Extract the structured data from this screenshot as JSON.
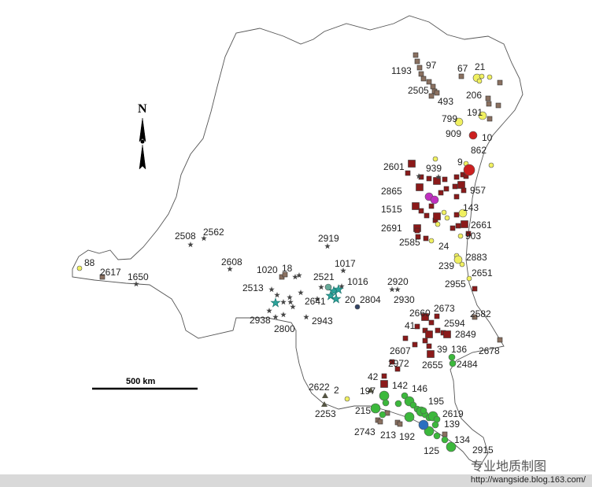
{
  "map": {
    "north_label": "N",
    "scale_label": "500 km",
    "labels": [
      "1193",
      "97",
      "67",
      "21",
      "2505",
      "493",
      "206",
      "799",
      "191",
      "909",
      "10",
      "862",
      "9",
      "2601",
      "939",
      "2865",
      "957",
      "1515",
      "143",
      "2691",
      "2661",
      "2585",
      "24",
      "903",
      "2883",
      "239",
      "2651",
      "2955",
      "2508",
      "2562",
      "2919",
      "2608",
      "1020",
      "18",
      "1017",
      "2521",
      "1016",
      "2513",
      "2641",
      "20",
      "2804",
      "2920",
      "2930",
      "2938",
      "2943",
      "2800",
      "88",
      "2617",
      "1650",
      "2660",
      "2673",
      "2582",
      "41",
      "2594",
      "2849",
      "2607",
      "39",
      "136",
      "2678",
      "2655",
      "2484",
      "2972",
      "42",
      "142",
      "146",
      "2622",
      "2",
      "197",
      "195",
      "2253",
      "215",
      "2619",
      "139",
      "2743",
      "213",
      "192",
      "134",
      "125",
      "2915"
    ],
    "marker_colors": {
      "dark_red_square": "#8b1a1a",
      "brown_square": "#8a7060",
      "yellow_circle": "#f0f060",
      "green_circle": "#3cb83c",
      "teal_star": "#2aa39a",
      "blue_circle": "#2a6fc0",
      "magenta_circle": "#c030c0",
      "grey_star": "#444444"
    }
  },
  "watermark": "专业地质制图",
  "footer": {
    "url": "http://wangside.blog.163.com/"
  }
}
